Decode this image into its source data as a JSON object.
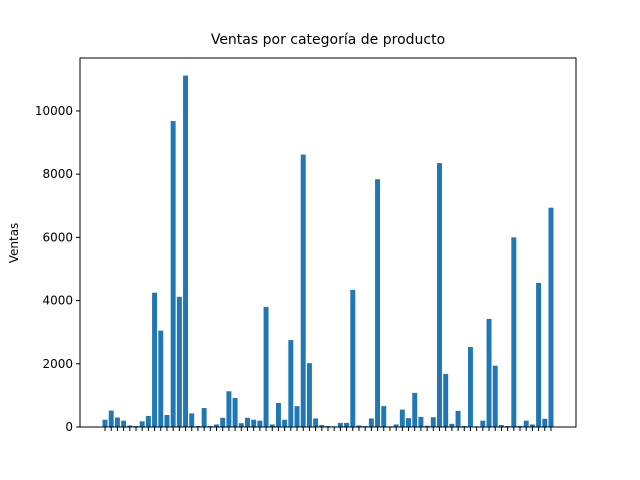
{
  "chart_data": {
    "type": "bar",
    "title": "Ventas por categoría de producto",
    "y_label": "Ventas",
    "categories": [
      null,
      null,
      null,
      null,
      null,
      null,
      null,
      null,
      null,
      null,
      null,
      null,
      null,
      null,
      null,
      null,
      null,
      null,
      null,
      null,
      null,
      null,
      null,
      null,
      null,
      null,
      null,
      null,
      null,
      null,
      null,
      null,
      null,
      null,
      null,
      null,
      null,
      null,
      null,
      null,
      null,
      null,
      null,
      null,
      null,
      null,
      null,
      null,
      null,
      null,
      null,
      null,
      null,
      null,
      null,
      null,
      null,
      null,
      null,
      null,
      null,
      null,
      null,
      null,
      null,
      null,
      null,
      null,
      null,
      null,
      null,
      null,
      null
    ],
    "values": [
      230,
      520,
      300,
      200,
      50,
      30,
      180,
      350,
      4250,
      3050,
      380,
      9680,
      4120,
      11120,
      430,
      30,
      600,
      30,
      80,
      290,
      1130,
      920,
      120,
      290,
      230,
      200,
      3800,
      80,
      760,
      230,
      2750,
      660,
      8620,
      2020,
      270,
      60,
      30,
      20,
      130,
      130,
      4340,
      50,
      30,
      270,
      7840,
      660,
      20,
      80,
      550,
      280,
      1080,
      320,
      40,
      310,
      8350,
      1680,
      100,
      510,
      30,
      2530,
      20,
      200,
      3420,
      1940,
      60,
      30,
      6000,
      30,
      200,
      80,
      4560,
      260,
      6940
    ],
    "color": "#1f77b4",
    "ylim": [
      0,
      11676
    ],
    "yticks": [
      0,
      2000,
      4000,
      6000,
      8000,
      10000
    ]
  }
}
